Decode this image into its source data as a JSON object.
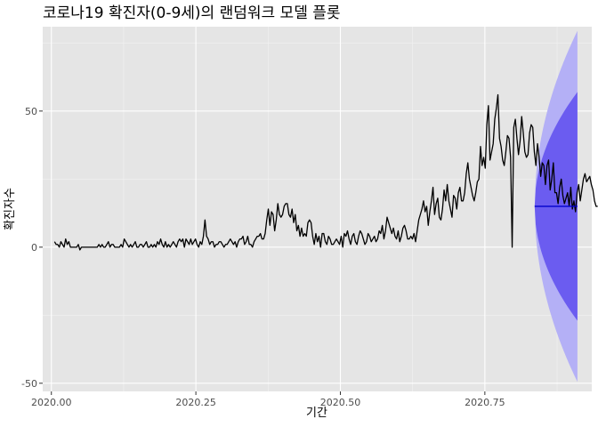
{
  "chart_data": {
    "type": "line",
    "title": "코로나19 확진자(0-9세)의 랜덤워크 모델 플롯",
    "xlabel": "기간",
    "ylabel": "확진자수",
    "xlim": [
      2019.985,
      2020.935
    ],
    "ylim": [
      -53,
      81
    ],
    "x_ticks": [
      {
        "value": 2020.0,
        "label": "2020.00"
      },
      {
        "value": 2020.25,
        "label": "2020.25"
      },
      {
        "value": 2020.5,
        "label": "2020.50"
      },
      {
        "value": 2020.75,
        "label": "2020.75"
      }
    ],
    "y_ticks": [
      {
        "value": -50,
        "label": "-50"
      },
      {
        "value": 0,
        "label": "0"
      },
      {
        "value": 50,
        "label": "50"
      }
    ],
    "grid": true,
    "series": [
      {
        "role": "observed",
        "color": "#000000",
        "x_start": 2020.0055,
        "x_step": 0.0027397,
        "values": [
          2,
          1,
          1,
          0,
          2,
          1,
          0,
          3,
          1,
          2,
          0,
          0,
          0,
          0,
          0,
          1,
          -1,
          0,
          0,
          0,
          0,
          0,
          0,
          0,
          0,
          0,
          0,
          0,
          1,
          0,
          1,
          0,
          0,
          1,
          2,
          0,
          1,
          1,
          0,
          0,
          0,
          0,
          1,
          0,
          3,
          2,
          1,
          0,
          1,
          0,
          1,
          2,
          0,
          0,
          1,
          1,
          0,
          1,
          2,
          0,
          0,
          1,
          0,
          1,
          0,
          2,
          1,
          3,
          1,
          0,
          2,
          0,
          1,
          0,
          1,
          2,
          1,
          0,
          2,
          3,
          2,
          3,
          0,
          3,
          2,
          1,
          3,
          1,
          2,
          3,
          1,
          0,
          2,
          1,
          4,
          10,
          4,
          3,
          1,
          2,
          2,
          0,
          1,
          1,
          2,
          2,
          1,
          0,
          1,
          1,
          2,
          3,
          2,
          1,
          2,
          0,
          2,
          3,
          3,
          4,
          1,
          2,
          4,
          1,
          1,
          0,
          2,
          3,
          4,
          4,
          5,
          3,
          3,
          5,
          10,
          14,
          8,
          13,
          12,
          6,
          10,
          16,
          12,
          11,
          12,
          15,
          16,
          16,
          12,
          11,
          14,
          9,
          12,
          6,
          8,
          4,
          7,
          4,
          5,
          4,
          9,
          10,
          9,
          4,
          1,
          5,
          2,
          4,
          0,
          5,
          5,
          2,
          1,
          4,
          3,
          1,
          1,
          2,
          3,
          2,
          1,
          4,
          0,
          5,
          4,
          6,
          3,
          1,
          4,
          5,
          2,
          1,
          4,
          6,
          5,
          3,
          1,
          2,
          5,
          4,
          2,
          3,
          4,
          2,
          3,
          6,
          5,
          8,
          3,
          6,
          11,
          9,
          7,
          5,
          7,
          4,
          3,
          6,
          2,
          4,
          7,
          8,
          6,
          3,
          3,
          4,
          3,
          5,
          2,
          6,
          10,
          12,
          14,
          17,
          13,
          15,
          8,
          13,
          17,
          22,
          12,
          16,
          18,
          11,
          10,
          14,
          21,
          17,
          23,
          17,
          14,
          11,
          19,
          18,
          14,
          20,
          22,
          17,
          17,
          20,
          27,
          31,
          25,
          22,
          19,
          17,
          20,
          24,
          25,
          37,
          30,
          33,
          29,
          45,
          52,
          32,
          35,
          38,
          47,
          51,
          56,
          40,
          37,
          32,
          30,
          35,
          41,
          40,
          33,
          0,
          44,
          47,
          40,
          34,
          39,
          48,
          42,
          35,
          33,
          34,
          42,
          45,
          44,
          35,
          30,
          38,
          33,
          26,
          31,
          30,
          23,
          30,
          32,
          21,
          25,
          31,
          20,
          20,
          16,
          22,
          25,
          19,
          16,
          18,
          20,
          15,
          22,
          14,
          17,
          13,
          20,
          23,
          17,
          21,
          25,
          27,
          24,
          25,
          26,
          23,
          21,
          17,
          15,
          15
        ]
      },
      {
        "role": "forecast",
        "color": "#0000cc",
        "value": 15,
        "x_start": 2020.8362,
        "x_end": 2020.9102,
        "inner_band": {
          "color": "#6b5cf0",
          "half_width_end": 42
        },
        "outer_band": {
          "color": "#b4b0f6",
          "half_width_end": 64.5
        }
      }
    ]
  }
}
